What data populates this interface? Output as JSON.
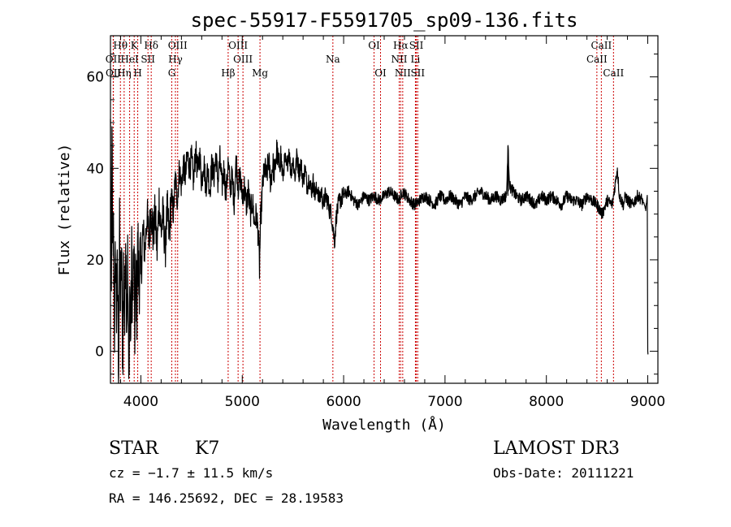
{
  "chart_data": {
    "type": "line",
    "title": "spec-55917-F5591705_sp09-136.fits",
    "xlabel": "Wavelength (Å)",
    "ylabel": "Flux (relative)",
    "xlim": [
      3700,
      9100
    ],
    "ylim": [
      -7,
      69
    ],
    "xticks": [
      4000,
      5000,
      6000,
      7000,
      8000,
      9000
    ],
    "yticks": [
      0,
      20,
      40,
      60
    ],
    "line_color": "#cc0000",
    "spectrum_color": "#000000",
    "series": [
      {
        "name": "flux",
        "x": [
          3700,
          3705,
          3710,
          3715,
          3720,
          3730,
          3740,
          3750,
          3760,
          3770,
          3780,
          3790,
          3800,
          3810,
          3820,
          3830,
          3840,
          3850,
          3860,
          3870,
          3880,
          3890,
          3900,
          3910,
          3920,
          3930,
          3940,
          3950,
          3960,
          3970,
          3980,
          3990,
          4000,
          4020,
          4040,
          4060,
          4080,
          4100,
          4120,
          4140,
          4160,
          4180,
          4200,
          4220,
          4240,
          4260,
          4280,
          4300,
          4320,
          4340,
          4360,
          4380,
          4400,
          4420,
          4440,
          4460,
          4480,
          4500,
          4520,
          4540,
          4560,
          4580,
          4600,
          4620,
          4640,
          4660,
          4680,
          4700,
          4720,
          4740,
          4760,
          4780,
          4800,
          4820,
          4840,
          4860,
          4880,
          4900,
          4920,
          4940,
          4960,
          4980,
          5000,
          5020,
          5040,
          5060,
          5080,
          5100,
          5120,
          5140,
          5160,
          5170,
          5180,
          5190,
          5200,
          5220,
          5240,
          5260,
          5280,
          5300,
          5320,
          5340,
          5360,
          5380,
          5400,
          5420,
          5440,
          5460,
          5480,
          5500,
          5520,
          5540,
          5560,
          5580,
          5600,
          5620,
          5640,
          5660,
          5680,
          5700,
          5720,
          5740,
          5760,
          5780,
          5800,
          5820,
          5840,
          5860,
          5880,
          5895,
          5910,
          5930,
          5960,
          6000,
          6050,
          6100,
          6150,
          6200,
          6250,
          6300,
          6350,
          6400,
          6450,
          6500,
          6550,
          6563,
          6580,
          6620,
          6650,
          6700,
          6750,
          6800,
          6850,
          6900,
          6950,
          7000,
          7050,
          7100,
          7150,
          7200,
          7250,
          7300,
          7350,
          7400,
          7450,
          7500,
          7550,
          7600,
          7610,
          7620,
          7640,
          7700,
          7750,
          7800,
          7850,
          7900,
          7950,
          8000,
          8050,
          8100,
          8150,
          8200,
          8250,
          8300,
          8350,
          8400,
          8450,
          8500,
          8550,
          8600,
          8650,
          8700,
          8720,
          8740,
          8760,
          8780,
          8800,
          8850,
          8900,
          8950,
          8980,
          8995,
          9000,
          9003
        ],
        "values": [
          48,
          30,
          10,
          55,
          20,
          25,
          5,
          22,
          8,
          18,
          -5,
          25,
          10,
          22,
          -3,
          18,
          5,
          28,
          8,
          20,
          -8,
          15,
          3,
          20,
          10,
          22,
          5,
          18,
          10,
          24,
          14,
          20,
          16,
          26,
          22,
          30,
          24,
          32,
          25,
          30,
          22,
          33,
          26,
          30,
          22,
          31,
          25,
          34,
          30,
          38,
          33,
          40,
          36,
          41,
          38,
          43,
          40,
          42,
          37,
          44,
          39,
          43,
          37,
          42,
          36,
          40,
          35,
          41,
          38,
          43,
          37,
          42,
          36,
          40,
          34,
          41,
          36,
          38,
          33,
          42,
          36,
          38,
          34,
          36,
          32,
          35,
          30,
          33,
          28,
          30,
          25,
          18,
          28,
          32,
          36,
          40,
          38,
          42,
          37,
          41,
          39,
          44,
          40,
          43,
          38,
          42,
          40,
          44,
          39,
          42,
          38,
          43,
          39,
          41,
          37,
          40,
          36,
          38,
          35,
          37,
          34,
          36,
          33,
          35,
          32,
          34,
          33,
          31,
          30,
          27,
          24,
          30,
          33,
          34,
          35,
          33,
          32,
          34,
          33,
          34,
          33,
          34,
          35,
          34,
          33,
          34,
          35,
          34,
          33,
          32,
          33,
          34,
          33,
          32,
          34,
          33,
          34,
          33,
          32,
          34,
          33,
          34,
          35,
          34,
          33,
          34,
          33,
          34,
          35,
          45,
          36,
          34,
          33,
          34,
          33,
          32,
          34,
          33,
          34,
          33,
          32,
          34,
          33,
          33,
          32,
          34,
          33,
          32,
          30,
          33,
          32,
          40,
          34,
          33,
          32,
          34,
          33,
          32,
          34,
          33,
          31,
          34,
          0,
          -1
        ]
      }
    ],
    "spectral_lines": [
      {
        "label": "Hθ",
        "x": 3798,
        "row": 1
      },
      {
        "label": "OII",
        "x": 3727,
        "row": 2
      },
      {
        "label": "OII",
        "x": 3729,
        "row": 3
      },
      {
        "label": "K",
        "x": 3934,
        "row": 1
      },
      {
        "label": "H",
        "x": 3969,
        "row": 3
      },
      {
        "label": "HeI",
        "x": 3889,
        "row": 2
      },
      {
        "label": "SII",
        "x": 4070,
        "row": 2
      },
      {
        "label": "Hη",
        "x": 3835,
        "row": 3
      },
      {
        "label": "Hδ",
        "x": 4102,
        "row": 1
      },
      {
        "label": "OIII",
        "x": 4363,
        "row": 1
      },
      {
        "label": "Hγ",
        "x": 4341,
        "row": 2
      },
      {
        "label": "G",
        "x": 4305,
        "row": 3
      },
      {
        "label": "OIII",
        "x": 4959,
        "row": 1
      },
      {
        "label": "OIII",
        "x": 5007,
        "row": 2
      },
      {
        "label": "Hβ",
        "x": 4861,
        "row": 3
      },
      {
        "label": "Mg",
        "x": 5175,
        "row": 3
      },
      {
        "label": "Na",
        "x": 5894,
        "row": 2
      },
      {
        "label": "OI",
        "x": 6300,
        "row": 1
      },
      {
        "label": "OI",
        "x": 6364,
        "row": 3
      },
      {
        "label": "Hα",
        "x": 6563,
        "row": 1
      },
      {
        "label": "SII",
        "x": 6717,
        "row": 1
      },
      {
        "label": "NII",
        "x": 6548,
        "row": 2
      },
      {
        "label": "Li",
        "x": 6708,
        "row": 2
      },
      {
        "label": "NII",
        "x": 6583,
        "row": 3
      },
      {
        "label": "SII",
        "x": 6731,
        "row": 3
      },
      {
        "label": "CaII",
        "x": 8542,
        "row": 1
      },
      {
        "label": "CaII",
        "x": 8498,
        "row": 2
      },
      {
        "label": "CaII",
        "x": 8662,
        "row": 3
      }
    ]
  },
  "info": {
    "class": "STAR",
    "subclass": "K7",
    "survey": "LAMOST DR3",
    "cz": "cz = −1.7 ± 11.5 km/s",
    "obs_date": "Obs-Date: 20111221",
    "coords": "RA = 146.25692, DEC =  28.19583"
  }
}
